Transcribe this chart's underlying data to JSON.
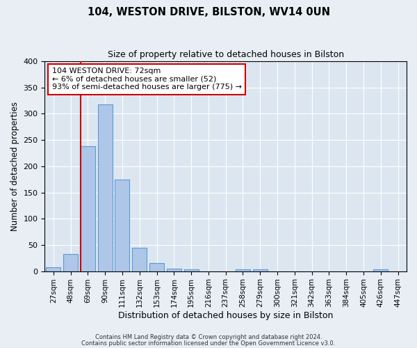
{
  "title": "104, WESTON DRIVE, BILSTON, WV14 0UN",
  "subtitle": "Size of property relative to detached houses in Bilston",
  "xlabel": "Distribution of detached houses by size in Bilston",
  "ylabel": "Number of detached properties",
  "bar_labels": [
    "27sqm",
    "48sqm",
    "69sqm",
    "90sqm",
    "111sqm",
    "132sqm",
    "153sqm",
    "174sqm",
    "195sqm",
    "216sqm",
    "237sqm",
    "258sqm",
    "279sqm",
    "300sqm",
    "321sqm",
    "342sqm",
    "363sqm",
    "384sqm",
    "405sqm",
    "426sqm",
    "447sqm"
  ],
  "bar_values": [
    8,
    32,
    238,
    318,
    175,
    44,
    16,
    5,
    4,
    0,
    0,
    4,
    3,
    0,
    0,
    0,
    0,
    0,
    0,
    3,
    0
  ],
  "bar_color": "#aec6e8",
  "bar_edge_color": "#5b9bd5",
  "ylim": [
    0,
    400
  ],
  "yticks": [
    0,
    50,
    100,
    150,
    200,
    250,
    300,
    350,
    400
  ],
  "vline_color": "#cc0000",
  "annotation_title": "104 WESTON DRIVE: 72sqm",
  "annotation_line1": "← 6% of detached houses are smaller (52)",
  "annotation_line2": "93% of semi-detached houses are larger (775) →",
  "footer_line1": "Contains HM Land Registry data © Crown copyright and database right 2024.",
  "footer_line2": "Contains public sector information licensed under the Open Government Licence v3.0.",
  "bg_color": "#e8eef4",
  "plot_bg_color": "#dce6f0",
  "grid_color": "#ffffff"
}
